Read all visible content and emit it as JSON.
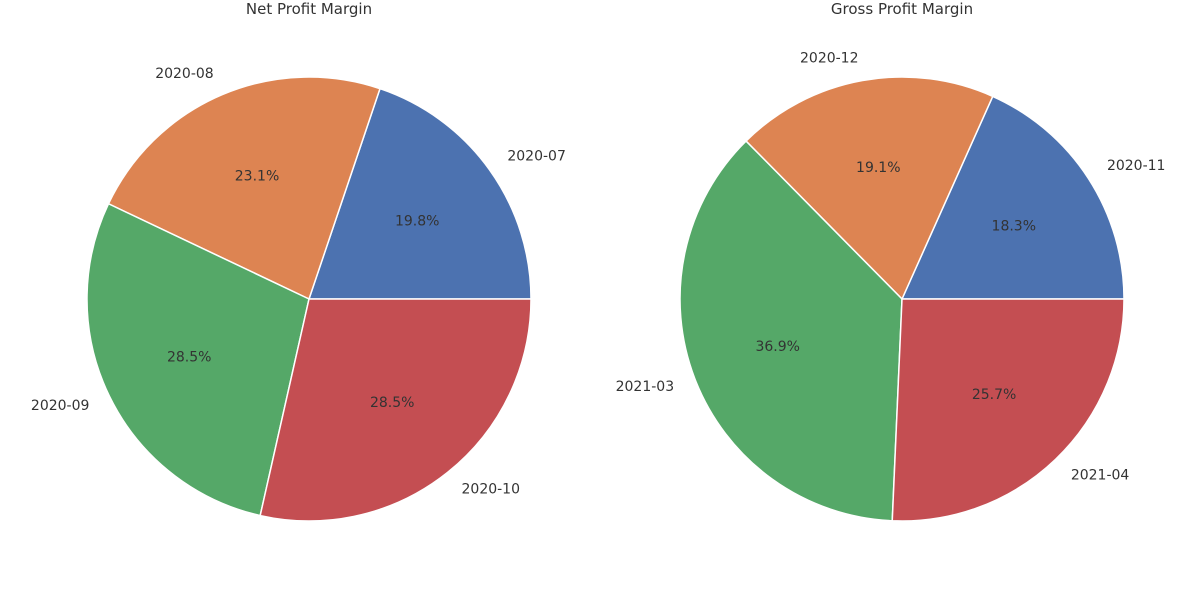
{
  "chart_data": [
    {
      "type": "pie",
      "title": "Net Profit Margin",
      "categories": [
        "2020-07",
        "2020-08",
        "2020-09",
        "2020-10"
      ],
      "values": [
        19.8,
        23.1,
        28.5,
        28.5
      ],
      "value_labels": [
        "19.8%",
        "23.1%",
        "28.5%",
        "28.5%"
      ],
      "colors": [
        "#4c72b0",
        "#dd8452",
        "#55a868",
        "#c44e52"
      ],
      "start_angle_deg": 0,
      "direction": "counterclockwise"
    },
    {
      "type": "pie",
      "title": "Gross Profit Margin",
      "categories": [
        "2020-11",
        "2020-12",
        "2021-03",
        "2021-04"
      ],
      "values": [
        18.3,
        19.1,
        36.9,
        25.7
      ],
      "value_labels": [
        "18.3%",
        "19.1%",
        "36.9%",
        "25.7%"
      ],
      "colors": [
        "#4c72b0",
        "#dd8452",
        "#55a868",
        "#c44e52"
      ],
      "start_angle_deg": 0,
      "direction": "counterclockwise"
    }
  ]
}
